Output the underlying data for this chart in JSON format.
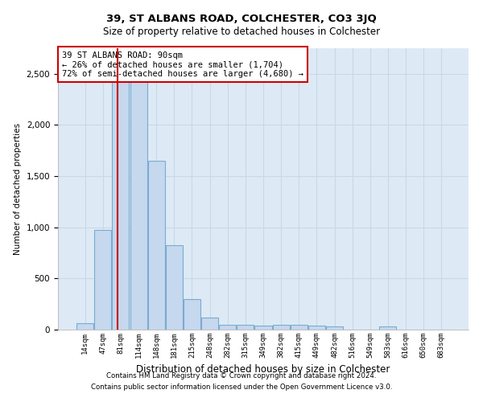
{
  "title1": "39, ST ALBANS ROAD, COLCHESTER, CO3 3JQ",
  "title2": "Size of property relative to detached houses in Colchester",
  "xlabel": "Distribution of detached houses by size in Colchester",
  "ylabel": "Number of detached properties",
  "categories": [
    "14sqm",
    "47sqm",
    "81sqm",
    "114sqm",
    "148sqm",
    "181sqm",
    "215sqm",
    "248sqm",
    "282sqm",
    "315sqm",
    "349sqm",
    "382sqm",
    "415sqm",
    "449sqm",
    "482sqm",
    "516sqm",
    "549sqm",
    "583sqm",
    "616sqm",
    "650sqm",
    "683sqm"
  ],
  "values": [
    60,
    975,
    2460,
    2460,
    1650,
    825,
    300,
    120,
    50,
    50,
    40,
    50,
    50,
    40,
    30,
    0,
    0,
    30,
    0,
    0,
    0
  ],
  "bar_color": "#c5d8ee",
  "bar_edge_color": "#7aabd0",
  "vline_x": 1.82,
  "vline_color": "#cc0000",
  "annotation_text": "39 ST ALBANS ROAD: 90sqm\n← 26% of detached houses are smaller (1,704)\n72% of semi-detached houses are larger (4,680) →",
  "annotation_box_color": "#ffffff",
  "annotation_edge_color": "#cc0000",
  "ylim": [
    0,
    2750
  ],
  "yticks": [
    0,
    500,
    1000,
    1500,
    2000,
    2500
  ],
  "grid_color": "#c8d8e8",
  "background_color": "#ddeaf5",
  "footer1": "Contains HM Land Registry data © Crown copyright and database right 2024.",
  "footer2": "Contains public sector information licensed under the Open Government Licence v3.0."
}
